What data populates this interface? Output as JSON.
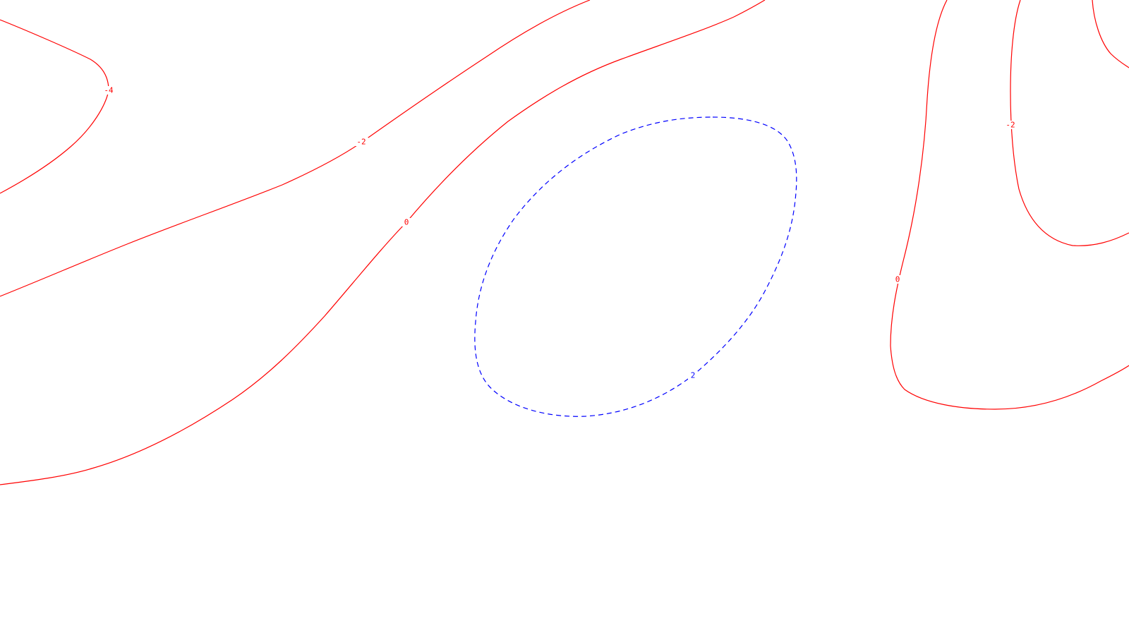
{
  "map": {
    "colors": {
      "background": "#ffffff",
      "negative_and_zero": "#ff0000",
      "positive": "#0000ff"
    },
    "contours": [
      {
        "id": "contour-minus4",
        "level": -4,
        "label": "-4",
        "color": "#ff0000",
        "dashed": false
      },
      {
        "id": "contour-minus2-main",
        "level": -2,
        "label": "-2",
        "color": "#ff0000",
        "dashed": false
      },
      {
        "id": "contour-zero-main",
        "level": 0,
        "label": "0",
        "color": "#ff0000",
        "dashed": false
      },
      {
        "id": "contour-plus2",
        "level": 2,
        "label": "2",
        "color": "#0000ff",
        "dashed": true
      },
      {
        "id": "contour-zero-right",
        "level": 0,
        "label": "0",
        "color": "#ff0000",
        "dashed": false
      },
      {
        "id": "contour-minus2-right",
        "level": -2,
        "label": "-2",
        "color": "#ff0000",
        "dashed": false
      }
    ]
  }
}
